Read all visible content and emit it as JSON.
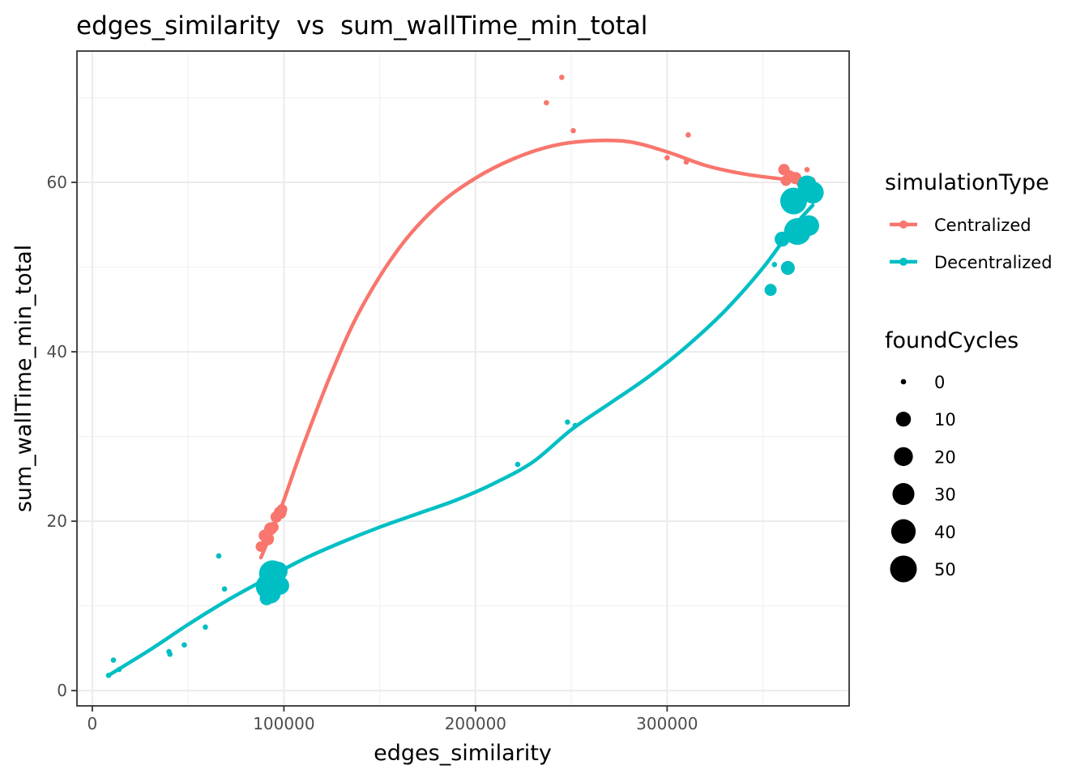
{
  "chart_data": {
    "type": "scatter",
    "title": "edges_similarity  vs  sum_wallTime_min_total",
    "xlabel": "edges_similarity",
    "ylabel": "sum_wallTime_min_total",
    "xlim": [
      -8000,
      395000
    ],
    "ylim": [
      -1.8,
      75.5
    ],
    "x_ticks": [
      0,
      100000,
      200000,
      300000
    ],
    "x_tick_labels": [
      "0",
      "100000",
      "200000",
      "300000"
    ],
    "y_ticks": [
      0,
      20,
      40,
      60
    ],
    "y_tick_labels": [
      "0",
      "20",
      "40",
      "60"
    ],
    "grid": true,
    "legend_placement": "right",
    "color_legend": {
      "title": "simulationType",
      "entries": [
        {
          "label": "Centralized",
          "color": "#F8766D"
        },
        {
          "label": "Decentralized",
          "color": "#00BFC4"
        }
      ]
    },
    "size_legend": {
      "title": "foundCycles",
      "entries": [
        {
          "label": "0",
          "value": 0
        },
        {
          "label": "10",
          "value": 10
        },
        {
          "label": "20",
          "value": 20
        },
        {
          "label": "30",
          "value": 30
        },
        {
          "label": "40",
          "value": 40
        },
        {
          "label": "50",
          "value": 50
        }
      ]
    },
    "series": [
      {
        "name": "Centralized",
        "color": "#F8766D",
        "points": [
          {
            "x": 88000,
            "y": 17.0,
            "size": 3
          },
          {
            "x": 90000,
            "y": 18.3,
            "size": 5
          },
          {
            "x": 91500,
            "y": 17.9,
            "size": 6
          },
          {
            "x": 93000,
            "y": 19.1,
            "size": 6
          },
          {
            "x": 94500,
            "y": 19.3,
            "size": 3
          },
          {
            "x": 96000,
            "y": 20.5,
            "size": 4
          },
          {
            "x": 98000,
            "y": 21.0,
            "size": 6
          },
          {
            "x": 99000,
            "y": 21.4,
            "size": 3
          },
          {
            "x": 237000,
            "y": 69.4,
            "size": 0
          },
          {
            "x": 245000,
            "y": 72.4,
            "size": 0
          },
          {
            "x": 251000,
            "y": 66.1,
            "size": 0
          },
          {
            "x": 300000,
            "y": 62.9,
            "size": 0
          },
          {
            "x": 310000,
            "y": 62.4,
            "size": 0
          },
          {
            "x": 311000,
            "y": 65.6,
            "size": 0
          },
          {
            "x": 361000,
            "y": 61.5,
            "size": 4
          },
          {
            "x": 362000,
            "y": 60.2,
            "size": 3
          },
          {
            "x": 364000,
            "y": 60.8,
            "size": 3
          },
          {
            "x": 367000,
            "y": 60.5,
            "size": 5
          },
          {
            "x": 370000,
            "y": 60.0,
            "size": 3
          },
          {
            "x": 373000,
            "y": 61.5,
            "size": 0
          },
          {
            "x": 375000,
            "y": 60.1,
            "size": 2
          }
        ],
        "smooth": [
          {
            "x": 88000,
            "y": 15.7
          },
          {
            "x": 95000,
            "y": 19.5
          },
          {
            "x": 100000,
            "y": 22.5
          },
          {
            "x": 110000,
            "y": 28.9
          },
          {
            "x": 125000,
            "y": 37.6
          },
          {
            "x": 140000,
            "y": 45.0
          },
          {
            "x": 160000,
            "y": 52.2
          },
          {
            "x": 180000,
            "y": 57.2
          },
          {
            "x": 200000,
            "y": 60.5
          },
          {
            "x": 220000,
            "y": 62.8
          },
          {
            "x": 240000,
            "y": 64.3
          },
          {
            "x": 260000,
            "y": 64.9
          },
          {
            "x": 280000,
            "y": 64.8
          },
          {
            "x": 300000,
            "y": 63.6
          },
          {
            "x": 320000,
            "y": 62.0
          },
          {
            "x": 340000,
            "y": 61.0
          },
          {
            "x": 360000,
            "y": 60.4
          },
          {
            "x": 375000,
            "y": 60.1
          }
        ]
      },
      {
        "name": "Decentralized",
        "color": "#00BFC4",
        "points": [
          {
            "x": 8500,
            "y": 1.8,
            "size": 0
          },
          {
            "x": 11000,
            "y": 3.6,
            "size": 0
          },
          {
            "x": 14000,
            "y": 2.5,
            "size": 0
          },
          {
            "x": 40000,
            "y": 4.6,
            "size": 0
          },
          {
            "x": 40500,
            "y": 4.3,
            "size": 0
          },
          {
            "x": 48000,
            "y": 5.4,
            "size": 0
          },
          {
            "x": 59000,
            "y": 7.5,
            "size": 0
          },
          {
            "x": 66000,
            "y": 15.9,
            "size": 0
          },
          {
            "x": 69000,
            "y": 12.0,
            "size": 0
          },
          {
            "x": 91000,
            "y": 10.9,
            "size": 8
          },
          {
            "x": 92000,
            "y": 12.3,
            "size": 45
          },
          {
            "x": 94000,
            "y": 13.8,
            "size": 50
          },
          {
            "x": 93000,
            "y": 11.5,
            "size": 25
          },
          {
            "x": 97000,
            "y": 14.1,
            "size": 20
          },
          {
            "x": 98000,
            "y": 12.4,
            "size": 18
          },
          {
            "x": 222000,
            "y": 26.7,
            "size": 0
          },
          {
            "x": 248000,
            "y": 31.7,
            "size": 0
          },
          {
            "x": 252000,
            "y": 31.3,
            "size": 0
          },
          {
            "x": 354000,
            "y": 47.3,
            "size": 5
          },
          {
            "x": 356000,
            "y": 50.3,
            "size": 0
          },
          {
            "x": 360000,
            "y": 53.3,
            "size": 10
          },
          {
            "x": 363000,
            "y": 49.9,
            "size": 8
          },
          {
            "x": 366000,
            "y": 57.8,
            "size": 50
          },
          {
            "x": 368000,
            "y": 54.2,
            "size": 50
          },
          {
            "x": 373000,
            "y": 59.7,
            "size": 20
          },
          {
            "x": 374000,
            "y": 54.9,
            "size": 25
          },
          {
            "x": 376000,
            "y": 58.8,
            "size": 30
          }
        ],
        "smooth": [
          {
            "x": 8500,
            "y": 1.8
          },
          {
            "x": 30000,
            "y": 4.8
          },
          {
            "x": 50000,
            "y": 7.8
          },
          {
            "x": 70000,
            "y": 10.6
          },
          {
            "x": 90000,
            "y": 13.1
          },
          {
            "x": 110000,
            "y": 15.5
          },
          {
            "x": 130000,
            "y": 17.5
          },
          {
            "x": 150000,
            "y": 19.3
          },
          {
            "x": 170000,
            "y": 20.9
          },
          {
            "x": 190000,
            "y": 22.5
          },
          {
            "x": 210000,
            "y": 24.5
          },
          {
            "x": 230000,
            "y": 27.0
          },
          {
            "x": 250000,
            "y": 30.8
          },
          {
            "x": 270000,
            "y": 33.9
          },
          {
            "x": 290000,
            "y": 37.0
          },
          {
            "x": 310000,
            "y": 40.6
          },
          {
            "x": 330000,
            "y": 44.8
          },
          {
            "x": 350000,
            "y": 49.9
          },
          {
            "x": 365000,
            "y": 54.5
          },
          {
            "x": 376000,
            "y": 57.3
          }
        ]
      }
    ]
  }
}
